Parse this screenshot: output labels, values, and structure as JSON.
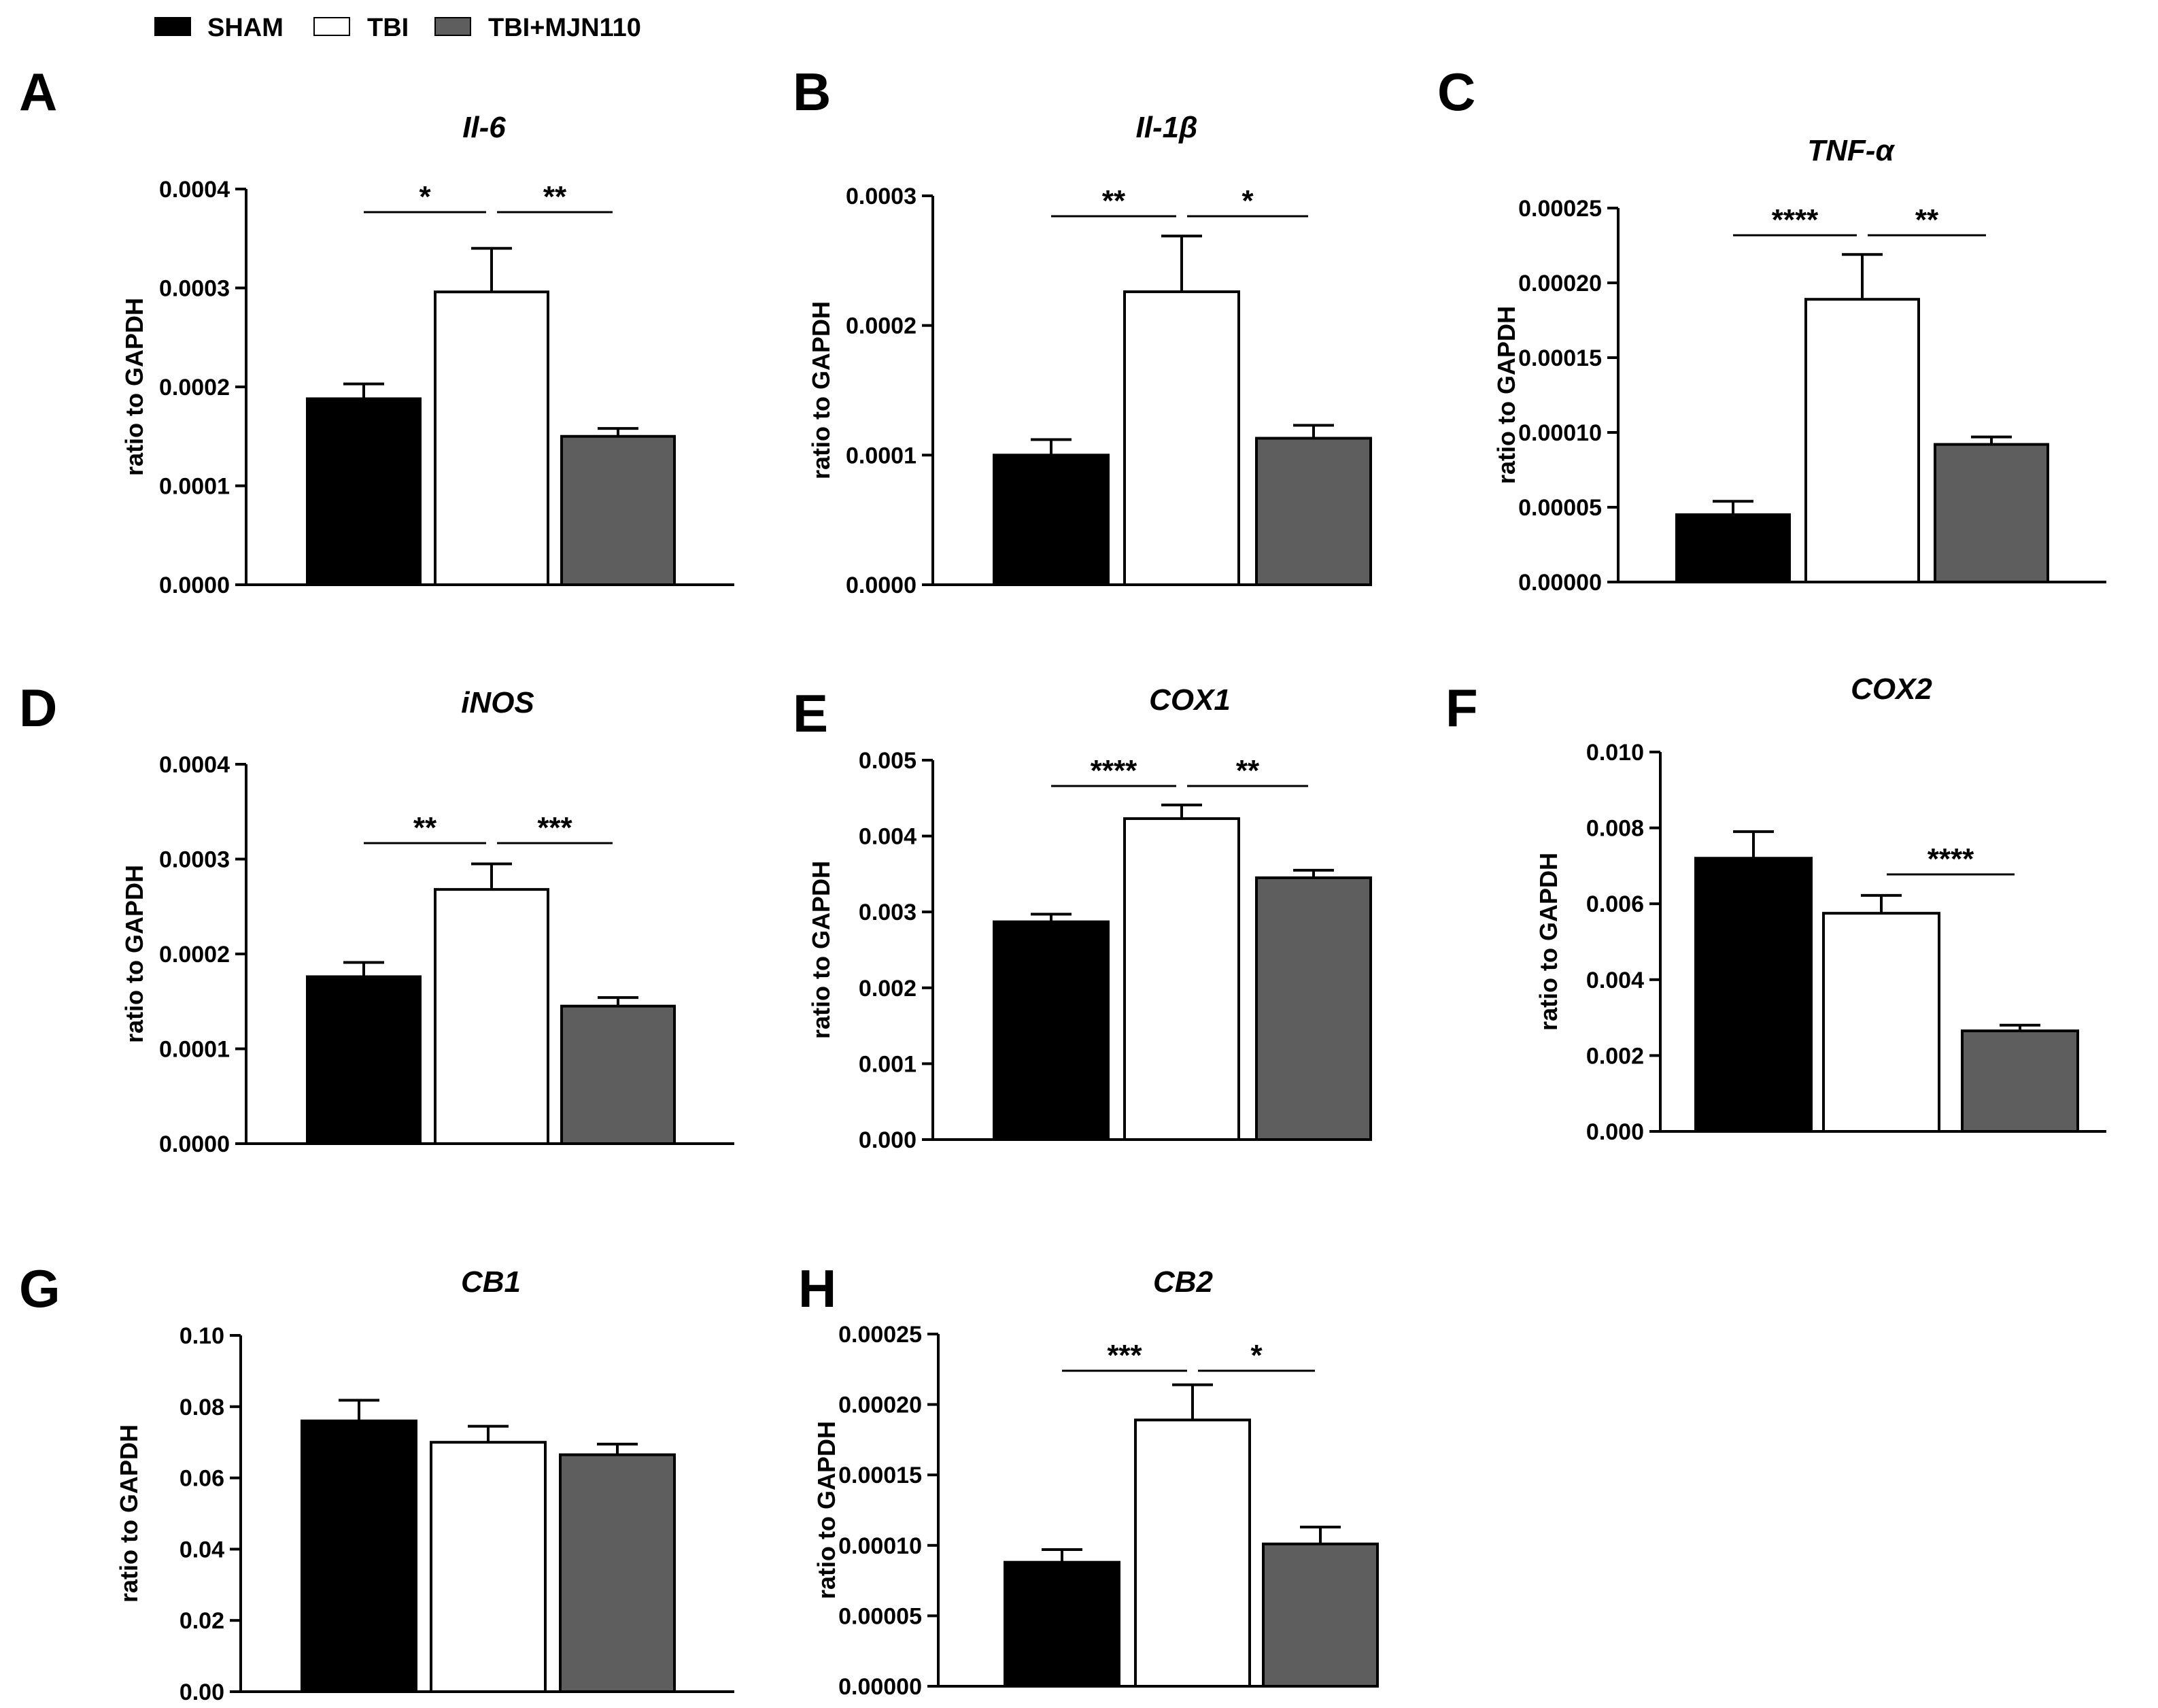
{
  "legend": [
    {
      "label": "SHAM",
      "color": "#000000"
    },
    {
      "label": "TBI",
      "color": "#ffffff"
    },
    {
      "label": "TBI+MJN110",
      "color": "#5e5e5e"
    }
  ],
  "chart_data": [
    {
      "type": "bar",
      "panel": "A",
      "title": "Il-6",
      "ylabel": "ratio to GAPDH",
      "categories": [
        "SHAM",
        "TBI",
        "TBI+MJN110"
      ],
      "values": [
        0.000188,
        0.000296,
        0.00015
      ],
      "errors": [
        1.5e-05,
        4.4e-05,
        8e-06
      ],
      "ylim": [
        0,
        0.0004
      ],
      "ticks": [
        "0.0000",
        "0.0001",
        "0.0002",
        "0.0003",
        "0.0004"
      ],
      "significance": [
        {
          "from": 0,
          "to": 1,
          "label": "*"
        },
        {
          "from": 1,
          "to": 2,
          "label": "**"
        }
      ]
    },
    {
      "type": "bar",
      "panel": "B",
      "title": "Il-1β",
      "ylabel": "ratio to GAPDH",
      "categories": [
        "SHAM",
        "TBI",
        "TBI+MJN110"
      ],
      "values": [
        0.0001,
        0.000226,
        0.000113
      ],
      "errors": [
        1.2e-05,
        4.3e-05,
        1e-05
      ],
      "ylim": [
        0,
        0.0003
      ],
      "ticks": [
        "0.0000",
        "0.0001",
        "0.0002",
        "0.0003"
      ],
      "significance": [
        {
          "from": 0,
          "to": 1,
          "label": "**"
        },
        {
          "from": 1,
          "to": 2,
          "label": "*"
        }
      ]
    },
    {
      "type": "bar",
      "panel": "C",
      "title": "TNF-α",
      "ylabel": "ratio to GAPDH",
      "categories": [
        "SHAM",
        "TBI",
        "TBI+MJN110"
      ],
      "values": [
        4.5e-05,
        0.000189,
        9.2e-05
      ],
      "errors": [
        9e-06,
        3e-05,
        5e-06
      ],
      "ylim": [
        0,
        0.00025
      ],
      "ticks": [
        "0.00000",
        "0.00005",
        "0.00010",
        "0.00015",
        "0.00020",
        "0.00025"
      ],
      "significance": [
        {
          "from": 0,
          "to": 1,
          "label": "****"
        },
        {
          "from": 1,
          "to": 2,
          "label": "**"
        }
      ]
    },
    {
      "type": "bar",
      "panel": "D",
      "title": "iNOS",
      "ylabel": "ratio to GAPDH",
      "categories": [
        "SHAM",
        "TBI",
        "TBI+MJN110"
      ],
      "values": [
        0.000176,
        0.000268,
        0.000145
      ],
      "errors": [
        1.5e-05,
        2.7e-05,
        9e-06
      ],
      "ylim": [
        0,
        0.0004
      ],
      "ticks": [
        "0.0000",
        "0.0001",
        "0.0002",
        "0.0003",
        "0.0004"
      ],
      "significance": [
        {
          "from": 0,
          "to": 1,
          "label": "**"
        },
        {
          "from": 1,
          "to": 2,
          "label": "***"
        }
      ]
    },
    {
      "type": "bar",
      "panel": "E",
      "title": "COX1",
      "ylabel": "ratio to GAPDH",
      "categories": [
        "SHAM",
        "TBI",
        "TBI+MJN110"
      ],
      "values": [
        0.00287,
        0.00423,
        0.00345
      ],
      "errors": [
        0.0001,
        0.00018,
        0.0001
      ],
      "ylim": [
        0,
        0.005
      ],
      "ticks": [
        "0.000",
        "0.001",
        "0.002",
        "0.003",
        "0.004",
        "0.005"
      ],
      "significance": [
        {
          "from": 0,
          "to": 1,
          "label": "****"
        },
        {
          "from": 1,
          "to": 2,
          "label": "**"
        }
      ]
    },
    {
      "type": "bar",
      "panel": "F",
      "title": "COX2",
      "ylabel": "ratio to GAPDH",
      "categories": [
        "SHAM",
        "TBI",
        "TBI+MJN110"
      ],
      "values": [
        0.0072,
        0.00575,
        0.00265
      ],
      "errors": [
        0.0007,
        0.00047,
        0.00015
      ],
      "ylim": [
        0,
        0.01
      ],
      "ticks": [
        "0.000",
        "0.002",
        "0.004",
        "0.006",
        "0.008",
        "0.010"
      ],
      "significance": [
        {
          "from": 1,
          "to": 2,
          "label": "****"
        }
      ]
    },
    {
      "type": "bar",
      "panel": "G",
      "title": "CB1",
      "ylabel": "ratio to GAPDH",
      "categories": [
        "SHAM",
        "TBI",
        "TBI+MJN110"
      ],
      "values": [
        0.076,
        0.07,
        0.0665
      ],
      "errors": [
        0.0058,
        0.0045,
        0.003
      ],
      "ylim": [
        0,
        0.1
      ],
      "ticks": [
        "0.00",
        "0.02",
        "0.04",
        "0.06",
        "0.08",
        "0.10"
      ],
      "significance": []
    },
    {
      "type": "bar",
      "panel": "H",
      "title": "CB2",
      "ylabel": "ratio to GAPDH",
      "categories": [
        "SHAM",
        "TBI",
        "TBI+MJN110"
      ],
      "values": [
        8.8e-05,
        0.000189,
        0.000101
      ],
      "errors": [
        9e-06,
        2.5e-05,
        1.2e-05
      ],
      "ylim": [
        0,
        0.00025
      ],
      "ticks": [
        "0.00000",
        "0.00005",
        "0.00010",
        "0.00015",
        "0.00020",
        "0.00025"
      ],
      "significance": [
        {
          "from": 0,
          "to": 1,
          "label": "***"
        },
        {
          "from": 1,
          "to": 2,
          "label": "*"
        }
      ]
    }
  ]
}
